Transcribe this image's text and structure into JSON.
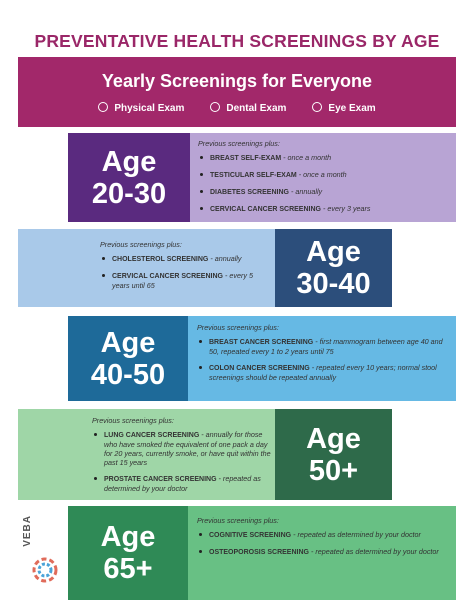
{
  "title": "PREVENTATIVE HEALTH SCREENINGS BY AGE",
  "yearly": {
    "title": "Yearly Screenings for Everyone",
    "items": [
      "Physical Exam",
      "Dental Exam",
      "Eye Exam"
    ]
  },
  "sections": [
    {
      "age": "Age",
      "range": "20-30",
      "intro": "Previous screenings plus:",
      "items": [
        {
          "name": "BREAST SELF-EXAM",
          "detail": "- once a month"
        },
        {
          "name": "TESTICULAR SELF-EXAM",
          "detail": "- once a month"
        },
        {
          "name": "DIABETES SCREENING",
          "detail": "- annually"
        },
        {
          "name": "CERVICAL CANCER SCREENING",
          "detail": "- every 3 years"
        }
      ]
    },
    {
      "age": "Age",
      "range": "30-40",
      "intro": "Previous screenings plus:",
      "items": [
        {
          "name": "CHOLESTEROL SCREENING",
          "detail": "- annually"
        },
        {
          "name": "CERVICAL CANCER SCREENING",
          "detail": "- every 5 years until 65"
        }
      ]
    },
    {
      "age": "Age",
      "range": "40-50",
      "intro": "Previous screenings plus:",
      "items": [
        {
          "name": "BREAST CANCER SCREENING",
          "detail": "- first mammogram between age 40 and 50, repeated every 1 to 2 years until 75"
        },
        {
          "name": "COLON CANCER SCREENING",
          "detail": "- repeated every 10 years; normal stool screenings should be repeated annually"
        }
      ]
    },
    {
      "age": "Age",
      "range": "50+",
      "intro": "Previous screenings plus:",
      "items": [
        {
          "name": "LUNG CANCER SCREENING",
          "detail": "- annually for those who have smoked the equivalent of one pack a day for 20 years, currently smoke, or have quit within the past 15 years"
        },
        {
          "name": "PROSTATE CANCER SCREENING",
          "detail": "- repeated as determined by your doctor"
        }
      ]
    },
    {
      "age": "Age",
      "range": "65+",
      "intro": "Previous screenings plus:",
      "items": [
        {
          "name": "COGNITIVE SCREENING",
          "detail": "- repeated as determined by your doctor"
        },
        {
          "name": "OSTEOPOROSIS SCREENING",
          "detail": "- repeated as determined by your doctor"
        }
      ]
    }
  ],
  "logo": {
    "text": "VEBA"
  }
}
